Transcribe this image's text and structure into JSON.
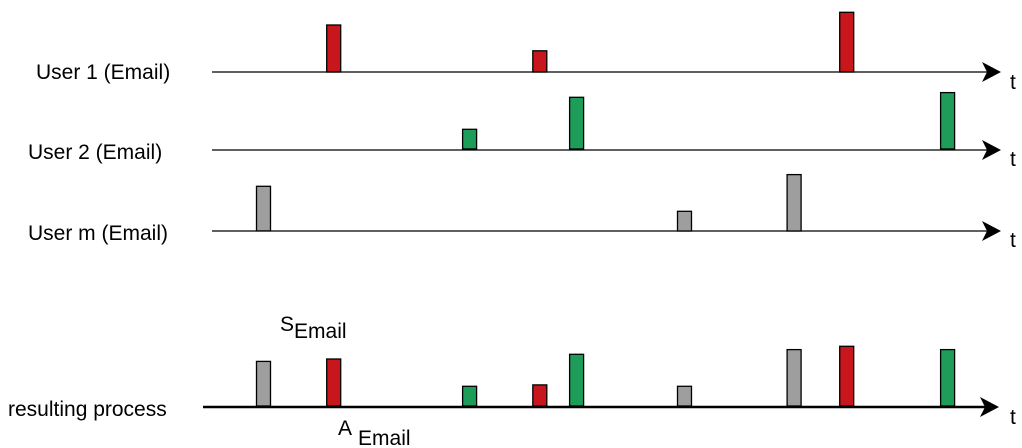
{
  "colors": {
    "user1": "#c8171c",
    "user2": "#1e9c5a",
    "userm": "#9e9e9e"
  },
  "lines": [
    {
      "id": "user1",
      "label": "User 1 (Email)",
      "axis_label": "t"
    },
    {
      "id": "user2",
      "label": "User 2 (Email)",
      "axis_label": "t"
    },
    {
      "id": "userm",
      "label": "User m (Email)",
      "axis_label": "t"
    },
    {
      "id": "result",
      "label": "resulting process",
      "axis_label": "t"
    }
  ],
  "annotations": {
    "s_main": "S",
    "s_sub": "Email",
    "a_main": "A",
    "a_sub": "Email"
  },
  "events": {
    "user1": [
      {
        "t": 1.0,
        "h": 1.0
      },
      {
        "t": 3.35,
        "h": 0.45
      },
      {
        "t": 6.85,
        "h": 1.27
      }
    ],
    "user2": [
      {
        "t": 2.55,
        "h": 0.42
      },
      {
        "t": 3.77,
        "h": 1.1
      },
      {
        "t": 8.0,
        "h": 1.2
      }
    ],
    "userm": [
      {
        "t": 0.2,
        "h": 0.95
      },
      {
        "t": 5.0,
        "h": 0.42
      },
      {
        "t": 6.25,
        "h": 1.2
      }
    ]
  }
}
